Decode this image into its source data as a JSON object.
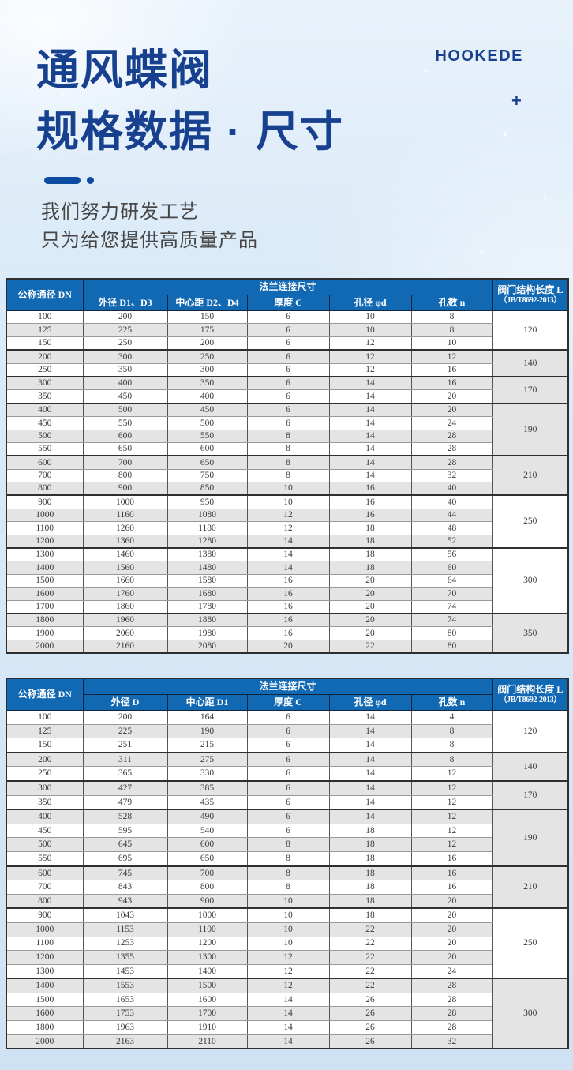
{
  "page": {
    "brand": "HOOKEDE",
    "plus_glyph": "+",
    "title_line1": "通风蝶阀",
    "title_line2": "规格数据 · 尺寸",
    "subtitle_line1": "我们努力研发工艺",
    "subtitle_line2": "只为给您提供高质量产品"
  },
  "colors": {
    "title_navy": "#17418f",
    "table_header_blue": "#1168b3",
    "alt_row_gray": "#e4e4e4",
    "page_background_blue": "#d9e8f6"
  },
  "tables": [
    {
      "header": {
        "dn_label": "公称通径 DN",
        "flange_group_label": "法兰连接尺寸",
        "sub_columns": [
          "外径 D1、D3",
          "中心距 D2、D4",
          "厚度 C",
          "孔径 φd",
          "孔数 n"
        ],
        "length_label": "阀门结构长度 L",
        "length_sub_label": "（JB/T8692-2013）"
      },
      "rows": [
        [
          100,
          200,
          150,
          6,
          10,
          8
        ],
        [
          125,
          225,
          175,
          6,
          10,
          8
        ],
        [
          150,
          250,
          200,
          6,
          12,
          10
        ],
        [
          200,
          300,
          250,
          6,
          12,
          12
        ],
        [
          250,
          350,
          300,
          6,
          12,
          16
        ],
        [
          300,
          400,
          350,
          6,
          14,
          16
        ],
        [
          350,
          450,
          400,
          6,
          14,
          20
        ],
        [
          400,
          500,
          450,
          6,
          14,
          20
        ],
        [
          450,
          550,
          500,
          6,
          14,
          24
        ],
        [
          500,
          600,
          550,
          8,
          14,
          28
        ],
        [
          550,
          650,
          600,
          8,
          14,
          28
        ],
        [
          600,
          700,
          650,
          8,
          14,
          28
        ],
        [
          700,
          800,
          750,
          8,
          14,
          32
        ],
        [
          800,
          900,
          850,
          10,
          16,
          40
        ],
        [
          900,
          1000,
          950,
          10,
          16,
          40
        ],
        [
          1000,
          1160,
          1080,
          12,
          16,
          44
        ],
        [
          1100,
          1260,
          1180,
          12,
          18,
          48
        ],
        [
          1200,
          1360,
          1280,
          14,
          18,
          52
        ],
        [
          1300,
          1460,
          1380,
          14,
          18,
          56
        ],
        [
          1400,
          1560,
          1480,
          14,
          18,
          60
        ],
        [
          1500,
          1660,
          1580,
          16,
          20,
          64
        ],
        [
          1600,
          1760,
          1680,
          16,
          20,
          70
        ],
        [
          1700,
          1860,
          1780,
          16,
          20,
          74
        ],
        [
          1800,
          1960,
          1880,
          16,
          20,
          74
        ],
        [
          1900,
          2060,
          1980,
          16,
          20,
          80
        ],
        [
          2000,
          2160,
          2080,
          20,
          22,
          80
        ]
      ],
      "length_groups": [
        {
          "span": 3,
          "value": "120"
        },
        {
          "span": 2,
          "value": "140"
        },
        {
          "span": 2,
          "value": "170"
        },
        {
          "span": 4,
          "value": "190"
        },
        {
          "span": 3,
          "value": "210"
        },
        {
          "span": 4,
          "value": "250"
        },
        {
          "span": 5,
          "value": "300"
        },
        {
          "span": 3,
          "value": "350"
        }
      ]
    },
    {
      "header": {
        "dn_label": "公称通径 DN",
        "flange_group_label": "法兰连接尺寸",
        "sub_columns": [
          "外径 D",
          "中心距 D1",
          "厚度 C",
          "孔径 φd",
          "孔数 n"
        ],
        "length_label": "阀门结构长度 L",
        "length_sub_label": "（JB/T8692-2013）"
      },
      "rows": [
        [
          100,
          200,
          164,
          6,
          14,
          4
        ],
        [
          125,
          225,
          190,
          6,
          14,
          8
        ],
        [
          150,
          251,
          215,
          6,
          14,
          8
        ],
        [
          200,
          311,
          275,
          6,
          14,
          8
        ],
        [
          250,
          365,
          330,
          6,
          14,
          12
        ],
        [
          300,
          427,
          385,
          6,
          14,
          12
        ],
        [
          350,
          479,
          435,
          6,
          14,
          12
        ],
        [
          400,
          528,
          490,
          6,
          14,
          12
        ],
        [
          450,
          595,
          540,
          6,
          18,
          12
        ],
        [
          500,
          645,
          600,
          8,
          18,
          12
        ],
        [
          550,
          695,
          650,
          8,
          18,
          16
        ],
        [
          600,
          745,
          700,
          8,
          18,
          16
        ],
        [
          700,
          843,
          800,
          8,
          18,
          16
        ],
        [
          800,
          943,
          900,
          10,
          18,
          20
        ],
        [
          900,
          1043,
          1000,
          10,
          18,
          20
        ],
        [
          1000,
          1153,
          1100,
          10,
          22,
          20
        ],
        [
          1100,
          1253,
          1200,
          10,
          22,
          20
        ],
        [
          1200,
          1355,
          1300,
          12,
          22,
          20
        ],
        [
          1300,
          1453,
          1400,
          12,
          22,
          24
        ],
        [
          1400,
          1553,
          1500,
          12,
          22,
          28
        ],
        [
          1500,
          1653,
          1600,
          14,
          26,
          28
        ],
        [
          1600,
          1753,
          1700,
          14,
          26,
          28
        ],
        [
          1800,
          1963,
          1910,
          14,
          26,
          28
        ],
        [
          2000,
          2163,
          2110,
          14,
          26,
          32
        ]
      ],
      "length_groups": [
        {
          "span": 3,
          "value": "120"
        },
        {
          "span": 2,
          "value": "140"
        },
        {
          "span": 2,
          "value": "170"
        },
        {
          "span": 4,
          "value": "190"
        },
        {
          "span": 3,
          "value": "210"
        },
        {
          "span": 5,
          "value": "250"
        },
        {
          "span": 5,
          "value": "300"
        }
      ]
    }
  ]
}
